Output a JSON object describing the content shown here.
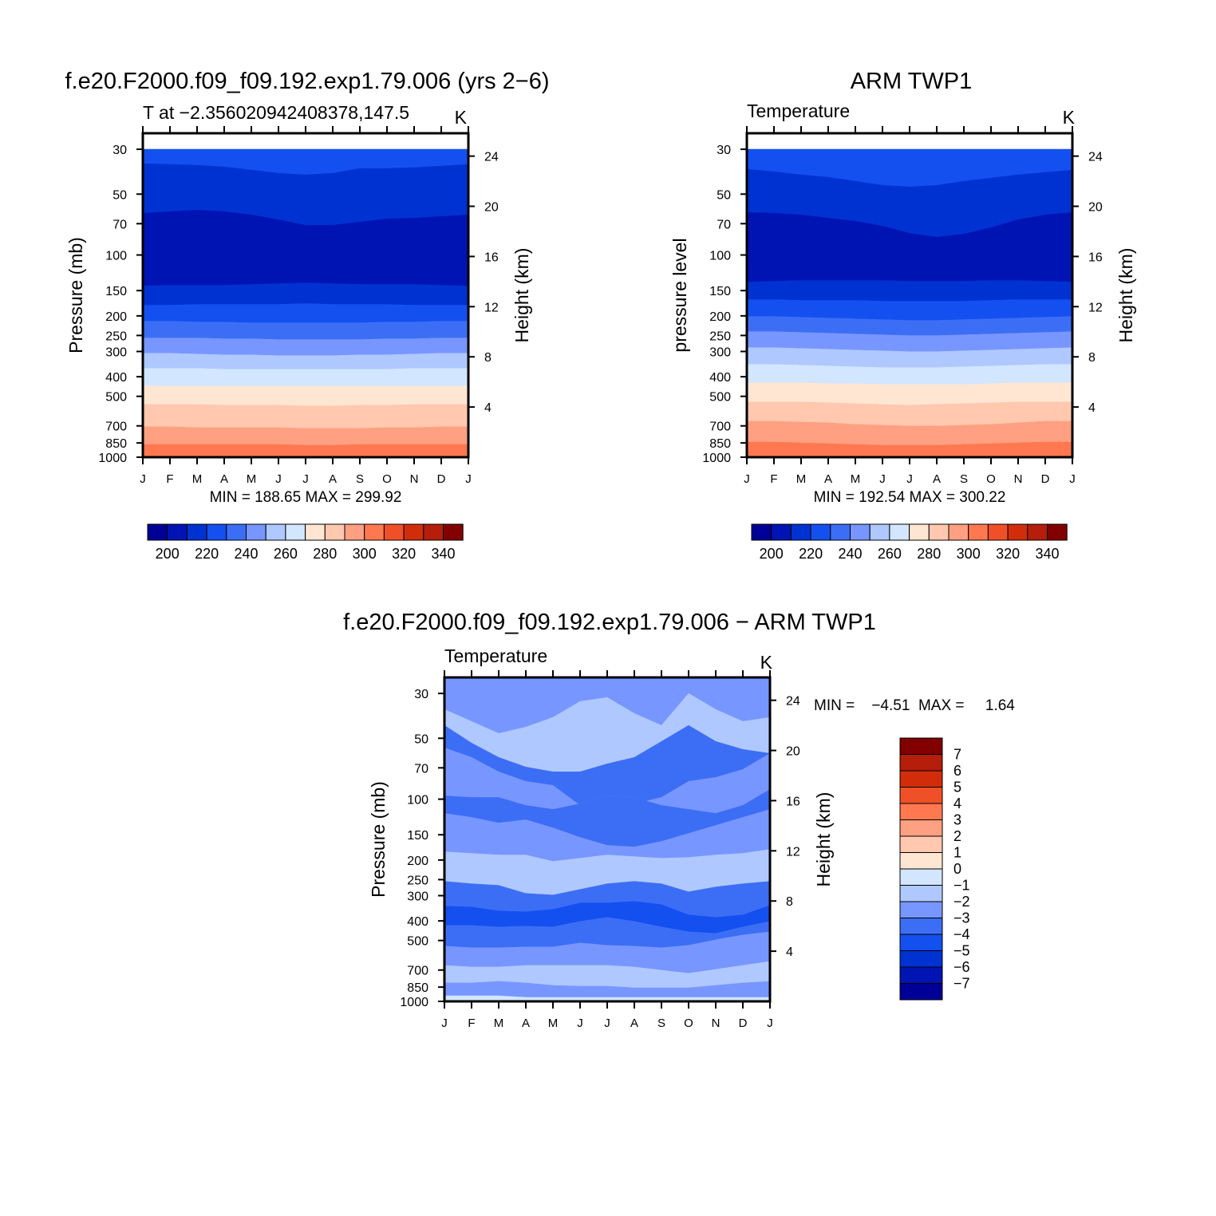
{
  "chart_data": [
    {
      "type": "heatmap",
      "panel": "model",
      "title": "f.e20.F2000.f09_f09.192.exp1.79.006 (yrs 2−6)",
      "subtitle_left": "T at −2.356020942408378,147.5",
      "subtitle_right": "K",
      "ylabel": "Pressure  (mb)",
      "ylabel_right": "Height  (km)",
      "months": [
        "J",
        "F",
        "M",
        "A",
        "M",
        "J",
        "J",
        "A",
        "S",
        "O",
        "N",
        "D",
        "J"
      ],
      "pressure_ticks": [
        "30",
        "50",
        "70",
        "100",
        "150",
        "200",
        "250",
        "300",
        "400",
        "500",
        "700",
        "850",
        "1000"
      ],
      "pressure_values": [
        30,
        50,
        70,
        100,
        150,
        200,
        250,
        300,
        400,
        500,
        700,
        850,
        1000
      ],
      "height_ticks": [
        "24",
        "20",
        "16",
        "12",
        "8",
        "4"
      ],
      "height_values": [
        24,
        20,
        16,
        12,
        8,
        4
      ],
      "stats": "MIN = 188.65  MAX = 299.92",
      "min": 188.65,
      "max": 299.92,
      "band_levels": [
        210,
        200,
        190,
        200,
        210,
        220,
        230,
        240,
        250,
        260,
        270,
        280,
        290,
        300
      ],
      "boundaries": [
        [
          20,
          20,
          20,
          20,
          20,
          20,
          20,
          20,
          20,
          20,
          20,
          20,
          20
        ],
        [
          38,
          39,
          40,
          42,
          46,
          50,
          52,
          50,
          44,
          44,
          43,
          41,
          39
        ],
        [
          100,
          98,
          96,
          98,
          102,
          108,
          115,
          115,
          111,
          107,
          106,
          104,
          102
        ],
        [
          191,
          190,
          190,
          190,
          189,
          188,
          187,
          188,
          189,
          189,
          189,
          190,
          191
        ],
        [
          215,
          215,
          214,
          214,
          214,
          214,
          213,
          214,
          214,
          214,
          215,
          215,
          215
        ],
        [
          235,
          235,
          236,
          236,
          237,
          237,
          237,
          237,
          237,
          236,
          236,
          235,
          235
        ],
        [
          256,
          256,
          256,
          257,
          257,
          258,
          258,
          258,
          258,
          257,
          257,
          256,
          256
        ],
        [
          275,
          275,
          276,
          277,
          277,
          278,
          278,
          278,
          277,
          277,
          276,
          275,
          275
        ],
        [
          294,
          294,
          294,
          295,
          295,
          295,
          295,
          295,
          295,
          295,
          294,
          294,
          294
        ],
        [
          316,
          316,
          316,
          316,
          316,
          316,
          316,
          316,
          316,
          316,
          316,
          316,
          316
        ],
        [
          339,
          339,
          339,
          340,
          340,
          340,
          341,
          341,
          340,
          340,
          339,
          339,
          339
        ],
        [
          367,
          367,
          368,
          368,
          368,
          368,
          369,
          369,
          369,
          368,
          368,
          367,
          367
        ],
        [
          389,
          389,
          389,
          389,
          389,
          389,
          390,
          390,
          389,
          389,
          389,
          389,
          389
        ],
        [
          405,
          405,
          405,
          405,
          405,
          405,
          405,
          405,
          405,
          405,
          405,
          405,
          405
        ]
      ],
      "colorbar_labels": [
        "200",
        "220",
        "240",
        "260",
        "280",
        "300",
        "320",
        "340"
      ]
    },
    {
      "type": "heatmap",
      "panel": "observations",
      "title": "ARM TWP1",
      "subtitle_left": "Temperature",
      "subtitle_right": "K",
      "ylabel": "pressure  level",
      "ylabel_right": "Height  (km)",
      "months": [
        "J",
        "F",
        "M",
        "A",
        "M",
        "J",
        "J",
        "A",
        "S",
        "O",
        "N",
        "D",
        "J"
      ],
      "pressure_ticks": [
        "30",
        "50",
        "70",
        "100",
        "150",
        "200",
        "250",
        "300",
        "400",
        "500",
        "700",
        "850",
        "1000"
      ],
      "height_ticks": [
        "24",
        "20",
        "16",
        "12",
        "8",
        "4"
      ],
      "stats": "MIN = 192.54  MAX = 300.22",
      "min": 192.54,
      "max": 300.22,
      "band_levels": [
        210,
        200,
        190,
        200,
        210,
        220,
        230,
        240,
        250,
        260,
        270,
        280,
        290,
        300
      ],
      "boundaries": [
        [
          20,
          20,
          20,
          20,
          20,
          20,
          20,
          20,
          20,
          20,
          20,
          20,
          20
        ],
        [
          45,
          48,
          52,
          55,
          60,
          65,
          67,
          65,
          60,
          56,
          52,
          49,
          46
        ],
        [
          99,
          100,
          102,
          106,
          110,
          116,
          125,
          130,
          126,
          118,
          108,
          102,
          99
        ],
        [
          186,
          185,
          184,
          184,
          184,
          184,
          185,
          185,
          185,
          184,
          184,
          185,
          186
        ],
        [
          208,
          208,
          209,
          209,
          209,
          210,
          210,
          210,
          210,
          209,
          208,
          208,
          208
        ],
        [
          229,
          229,
          230,
          231,
          232,
          233,
          234,
          234,
          233,
          232,
          231,
          230,
          229
        ],
        [
          248,
          248,
          249,
          250,
          251,
          252,
          253,
          253,
          252,
          251,
          250,
          249,
          248
        ],
        [
          268,
          268,
          269,
          270,
          271,
          272,
          273,
          273,
          272,
          271,
          270,
          269,
          268
        ],
        [
          289,
          289,
          290,
          291,
          292,
          293,
          293,
          293,
          292,
          291,
          290,
          289,
          289
        ],
        [
          312,
          312,
          312,
          313,
          313,
          314,
          314,
          314,
          314,
          313,
          312,
          312,
          312
        ],
        [
          336,
          336,
          336,
          337,
          338,
          339,
          340,
          339,
          338,
          337,
          336,
          336,
          336
        ],
        [
          360,
          360,
          361,
          362,
          364,
          365,
          366,
          366,
          365,
          364,
          362,
          360,
          360
        ],
        [
          386,
          386,
          387,
          388,
          389,
          390,
          390,
          390,
          389,
          388,
          387,
          386,
          386
        ],
        [
          405,
          405,
          405,
          405,
          405,
          405,
          405,
          405,
          405,
          405,
          405,
          405,
          405
        ]
      ],
      "colorbar_labels": [
        "200",
        "220",
        "240",
        "260",
        "280",
        "300",
        "320",
        "340"
      ]
    },
    {
      "type": "heatmap",
      "panel": "difference",
      "title": "f.e20.F2000.f09_f09.192.exp1.79.006 − ARM TWP1",
      "subtitle_left": "Temperature",
      "subtitle_right": "K",
      "ylabel": "Pressure  (mb)",
      "ylabel_right": "Height  (km)",
      "months": [
        "J",
        "F",
        "M",
        "A",
        "M",
        "J",
        "J",
        "A",
        "S",
        "O",
        "N",
        "D",
        "J"
      ],
      "pressure_ticks": [
        "30",
        "50",
        "70",
        "100",
        "150",
        "200",
        "250",
        "300",
        "400",
        "500",
        "700",
        "850",
        "1000"
      ],
      "height_ticks": [
        "24",
        "20",
        "16",
        "12",
        "8",
        "4"
      ],
      "stats": "MIN =    −4.51  MAX =     1.64",
      "min": -4.51,
      "max": 1.64,
      "band_levels": [
        -2,
        -1.5,
        -3,
        -2,
        -3,
        -2,
        -1.5,
        -3,
        -4,
        -3,
        -2,
        -1,
        -2,
        -0.5,
        0.5
      ],
      "boundaries": [
        [
          0,
          0,
          0,
          0,
          0,
          0,
          0,
          0,
          0,
          0,
          0,
          0,
          0
        ],
        [
          40,
          55,
          70,
          62,
          50,
          30,
          25,
          45,
          60,
          20,
          40,
          55,
          50
        ],
        [
          60,
          82,
          100,
          112,
          118,
          118,
          108,
          100,
          80,
          60,
          80,
          90,
          95
        ],
        [
          88,
          100,
          118,
          130,
          135,
          160,
          158,
          158,
          150,
          130,
          125,
          115,
          95
        ],
        [
          148,
          150,
          150,
          160,
          165,
          158,
          148,
          150,
          160,
          165,
          170,
          160,
          140
        ],
        [
          170,
          175,
          182,
          178,
          188,
          200,
          210,
          212,
          205,
          195,
          185,
          175,
          165
        ],
        [
          218,
          220,
          222,
          222,
          230,
          226,
          222,
          224,
          226,
          225,
          222,
          220,
          215
        ],
        [
          255,
          258,
          260,
          270,
          272,
          265,
          258,
          255,
          258,
          268,
          262,
          258,
          255
        ],
        [
          286,
          287,
          292,
          293,
          290,
          282,
          282,
          280,
          284,
          297,
          300,
          297,
          285
        ],
        [
          310,
          310,
          312,
          311,
          312,
          305,
          300,
          305,
          312,
          318,
          320,
          312,
          305
        ],
        [
          336,
          338,
          338,
          337,
          337,
          332,
          335,
          336,
          338,
          335,
          328,
          322,
          318
        ],
        [
          360,
          362,
          362,
          360,
          360,
          360,
          360,
          362,
          366,
          370,
          365,
          360,
          355
        ],
        [
          382,
          382,
          380,
          382,
          385,
          386,
          386,
          388,
          388,
          388,
          385,
          382,
          380
        ],
        [
          398,
          398,
          398,
          400,
          400,
          400,
          400,
          400,
          400,
          400,
          400,
          400,
          400
        ],
        [
          405,
          405,
          405,
          405,
          405,
          405,
          405,
          405,
          405,
          405,
          405,
          405,
          405
        ]
      ],
      "colorbar_labels": [
        "7",
        "6",
        "5",
        "4",
        "3",
        "2",
        "1",
        "0",
        "−1",
        "−2",
        "−3",
        "−4",
        "−5",
        "−6",
        "−7"
      ]
    }
  ],
  "colors": {
    "temp_bar": [
      "#000096",
      "#0014b4",
      "#0032d2",
      "#1450f0",
      "#3c6ef5",
      "#7896ff",
      "#afc8ff",
      "#d2e6ff",
      "#ffe6d2",
      "#ffc8af",
      "#ffa082",
      "#ff7850",
      "#f05028",
      "#d22d0a",
      "#b41e0a",
      "#820000"
    ],
    "diff_bar": [
      "#820000",
      "#b41e0a",
      "#d22d0a",
      "#f05028",
      "#ff7850",
      "#ffa082",
      "#ffc8af",
      "#ffe6d2",
      "#d2e6ff",
      "#afc8ff",
      "#7896ff",
      "#3c6ef5",
      "#1450f0",
      "#0032d2",
      "#0014b4",
      "#000096"
    ]
  }
}
